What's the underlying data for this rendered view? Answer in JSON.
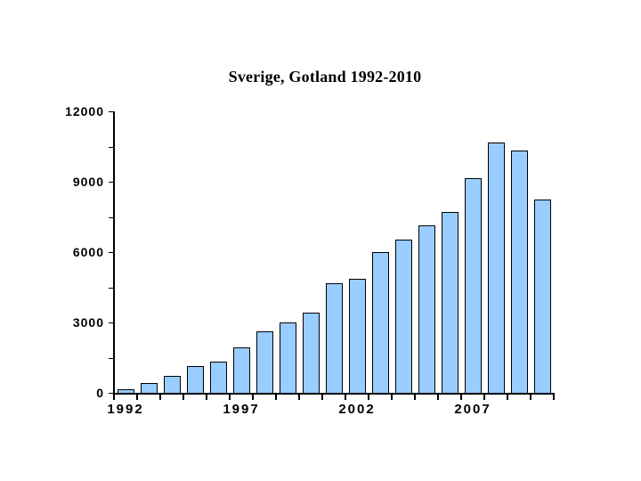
{
  "title": "Sverige, Gotland 1992-2010",
  "chart_data": {
    "type": "bar",
    "title": "Sverige, Gotland 1992-2010",
    "categories": [
      1992,
      1993,
      1994,
      1995,
      1996,
      1997,
      1998,
      1999,
      2000,
      2001,
      2002,
      2003,
      2004,
      2005,
      2006,
      2007,
      2008,
      2009,
      2010
    ],
    "values": [
      110,
      390,
      680,
      1100,
      1290,
      1890,
      2570,
      2950,
      3370,
      4630,
      4840,
      5950,
      6490,
      7090,
      7660,
      9130,
      10620,
      10290,
      8210
    ],
    "xlabel": "",
    "ylabel": "",
    "ylim": [
      0,
      12000
    ],
    "y_minor_tick_step": 1500,
    "y_label_step": 3000,
    "y_axis_labels": [
      "0",
      "3000",
      "6000",
      "9000",
      "12000"
    ],
    "x_axis_labels": [
      {
        "index": 0,
        "label": "1992"
      },
      {
        "index": 5,
        "label": "1997"
      },
      {
        "index": 10,
        "label": "2002"
      },
      {
        "index": 15,
        "label": "2007"
      }
    ],
    "grid": false,
    "legend": "none",
    "colors": {
      "bar_fill": "#99CCFF",
      "bar_border": "#000000",
      "axis": "#000000",
      "background": "#FFFFFF",
      "text": "#000000"
    }
  }
}
